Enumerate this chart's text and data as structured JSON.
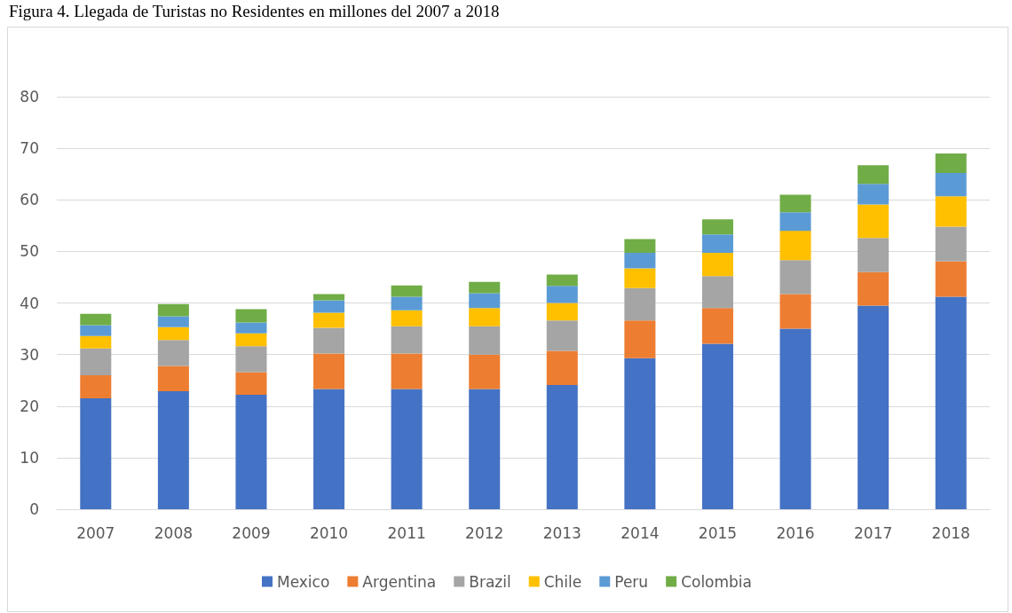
{
  "chart_data": {
    "type": "bar",
    "title": "Figura 4. Llegada de Turistas no Residentes en millones del 2007 a 2018",
    "categories": [
      "2007",
      "2008",
      "2009",
      "2010",
      "2011",
      "2012",
      "2013",
      "2014",
      "2015",
      "2016",
      "2017",
      "2018"
    ],
    "stacked": true,
    "ylim": [
      0,
      80
    ],
    "yticks": [
      0,
      10,
      20,
      30,
      40,
      50,
      60,
      70,
      80
    ],
    "grid": "y",
    "legend": "bottom",
    "series": [
      {
        "name": "Mexico",
        "color": "#4472c4",
        "values": [
          21.5,
          22.9,
          22.2,
          23.3,
          23.3,
          23.3,
          24.1,
          29.3,
          32.1,
          35.0,
          39.5,
          41.2
        ]
      },
      {
        "name": "Argentina",
        "color": "#ed7d31",
        "values": [
          4.5,
          4.9,
          4.4,
          6.9,
          6.9,
          6.7,
          6.6,
          7.3,
          6.9,
          6.7,
          6.5,
          6.9
        ]
      },
      {
        "name": "Brazil",
        "color": "#a5a5a5",
        "values": [
          5.2,
          5.0,
          5.0,
          5.0,
          5.3,
          5.5,
          5.9,
          6.3,
          6.2,
          6.6,
          6.6,
          6.7
        ]
      },
      {
        "name": "Chile",
        "color": "#ffc000",
        "values": [
          2.4,
          2.5,
          2.5,
          2.9,
          3.1,
          3.5,
          3.4,
          3.8,
          4.5,
          5.7,
          6.5,
          5.9
        ]
      },
      {
        "name": "Peru",
        "color": "#5b9bd5",
        "values": [
          2.1,
          2.1,
          2.1,
          2.4,
          2.6,
          2.9,
          3.3,
          3.0,
          3.6,
          3.6,
          4.0,
          4.5
        ]
      },
      {
        "name": "Colombia",
        "color": "#70ad47",
        "values": [
          2.2,
          2.4,
          2.6,
          1.2,
          2.2,
          2.2,
          2.2,
          2.7,
          2.9,
          3.4,
          3.6,
          3.8
        ]
      }
    ]
  }
}
